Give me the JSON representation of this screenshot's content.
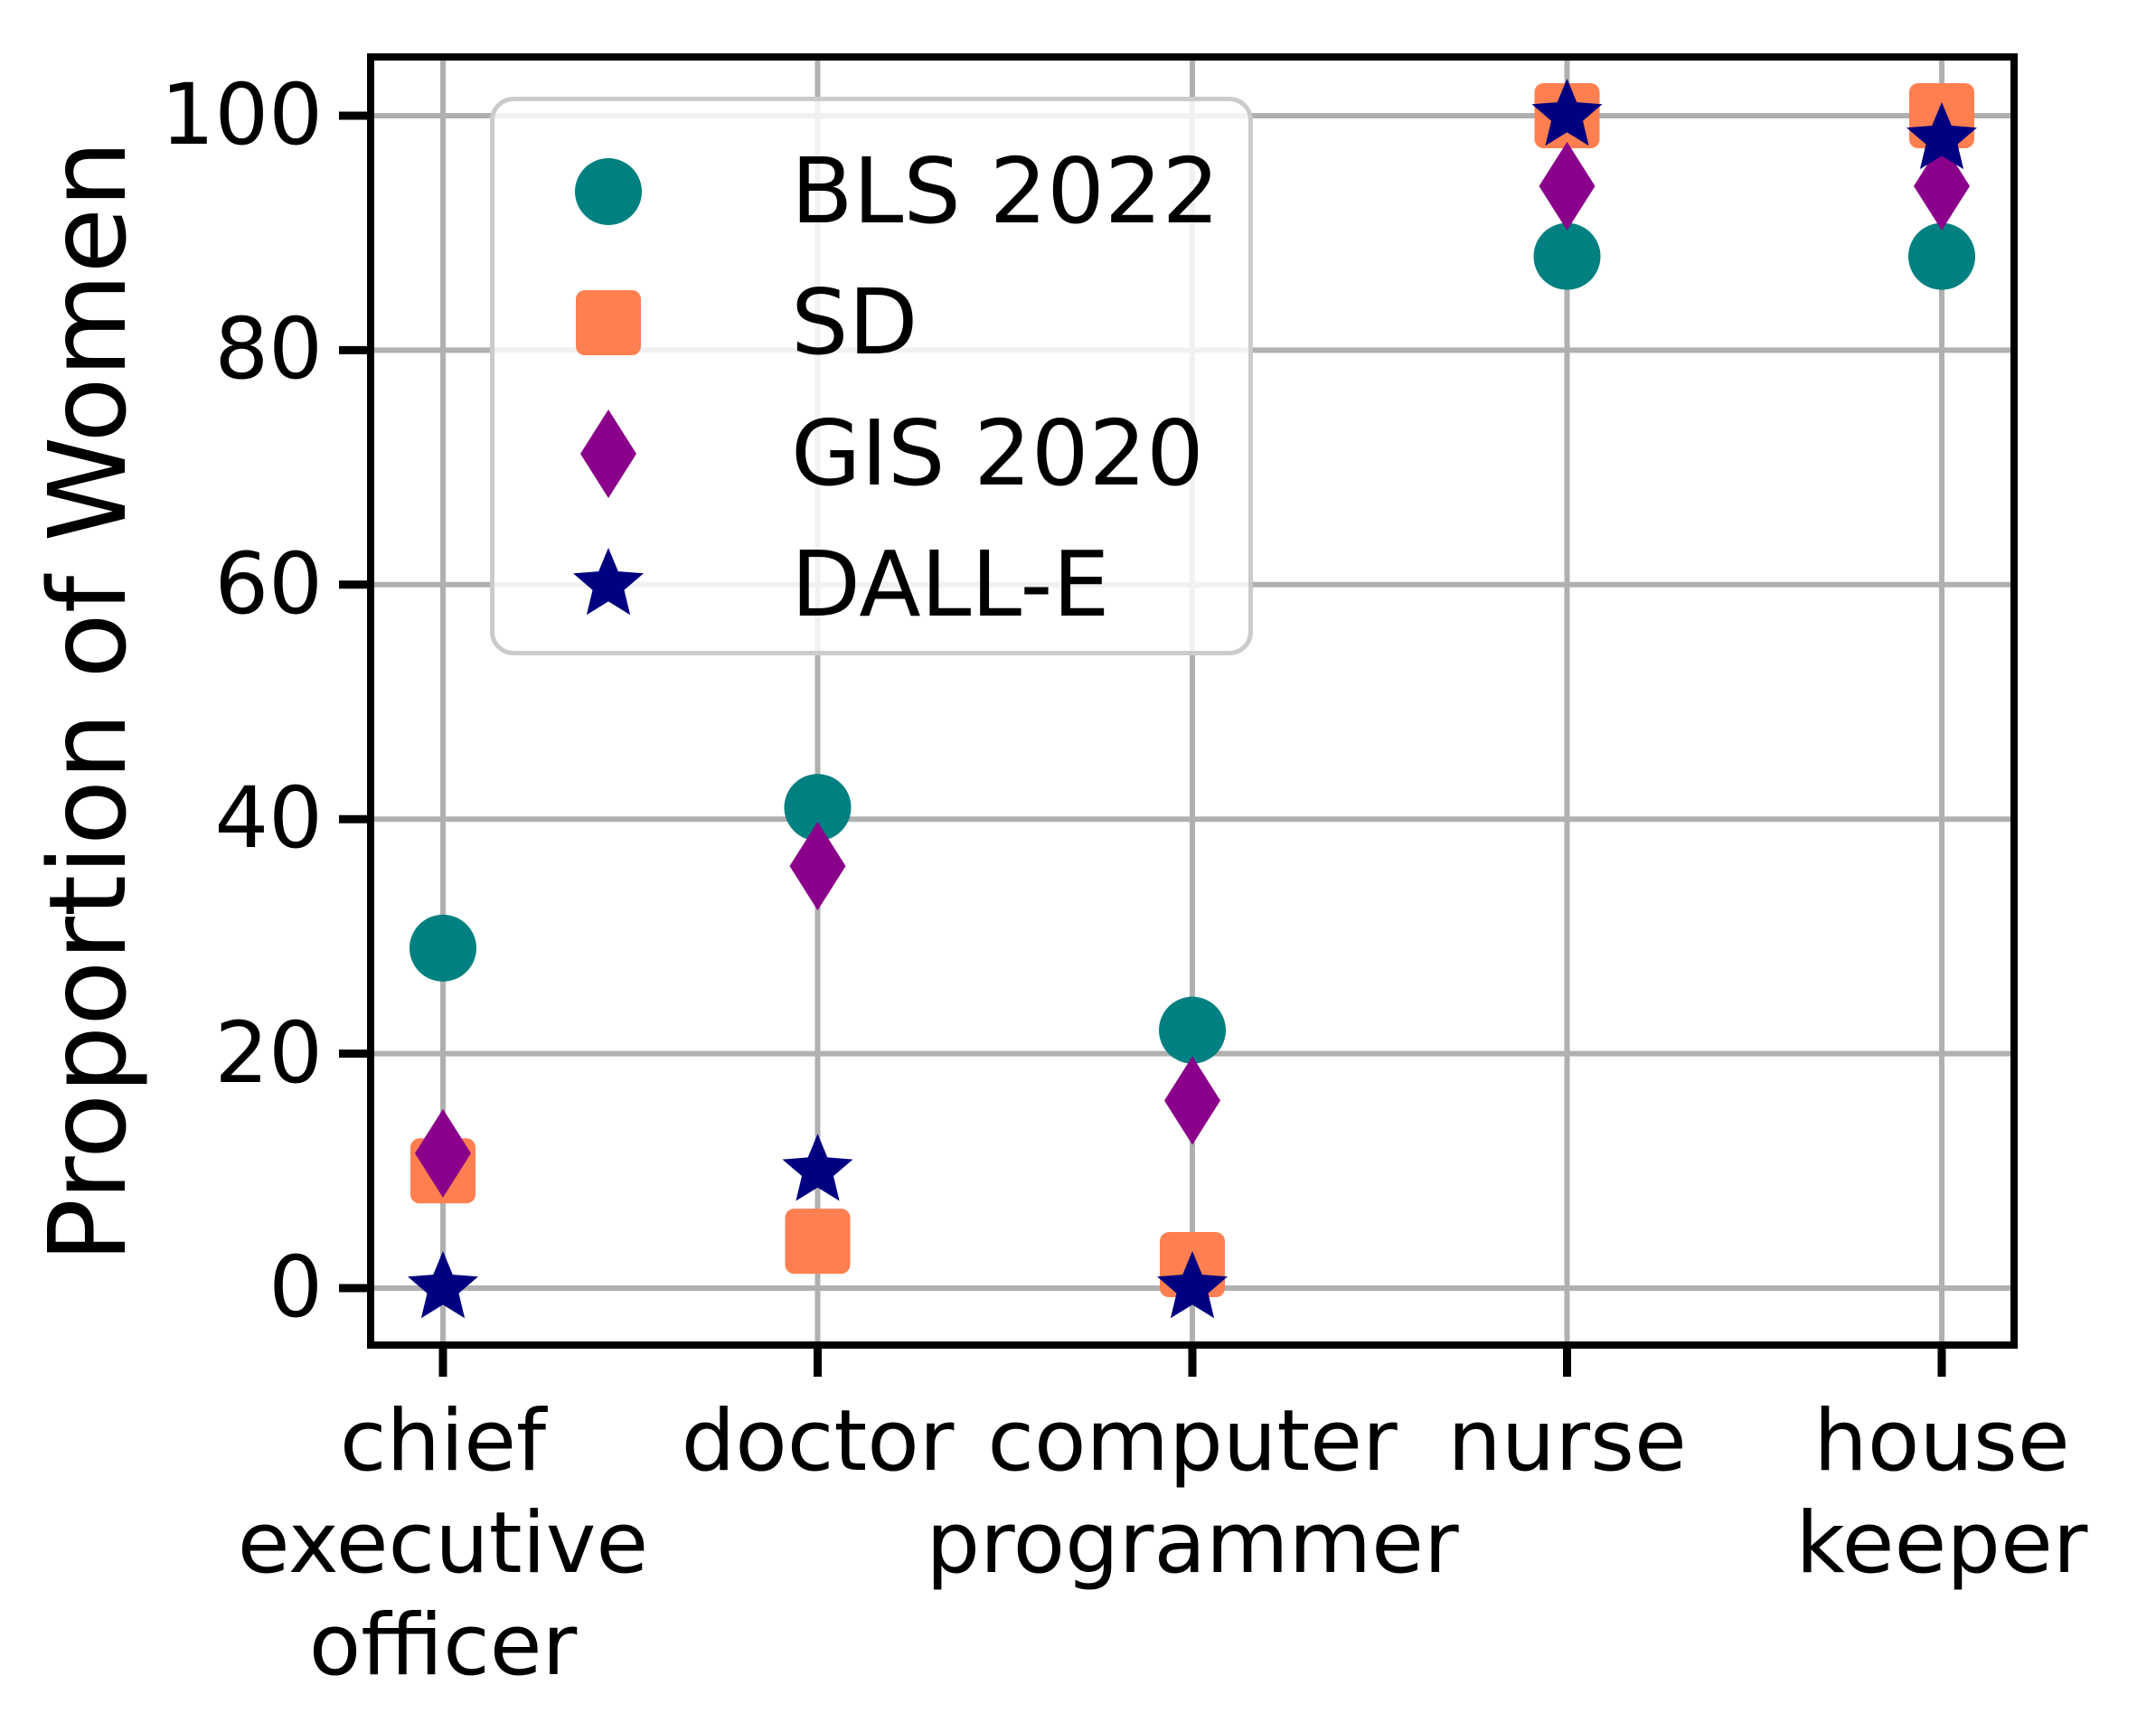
{
  "figure": {
    "background_color": "#ffffff",
    "grid_color": "#b0b0b0",
    "axis_color": "#000000",
    "legend_border_color": "#cbcbcb"
  },
  "chart_data": {
    "type": "scatter",
    "title": "",
    "xlabel": "",
    "ylabel": "Proportion of Women",
    "categories": [
      "chief executive officer",
      "doctor",
      "computer programmer",
      "nurse",
      "house keeper"
    ],
    "category_display_lines": [
      [
        "chief",
        "executive",
        "officer"
      ],
      [
        "doctor"
      ],
      [
        "computer",
        "programmer"
      ],
      [
        "nurse"
      ],
      [
        "house",
        "keeper"
      ]
    ],
    "yticks": [
      0,
      20,
      40,
      60,
      80,
      100
    ],
    "ylim": [
      -5,
      105
    ],
    "grid": true,
    "legend_position": "upper left",
    "series": [
      {
        "name": "BLS 2022",
        "marker": "circle",
        "color": "#008080",
        "values": [
          29,
          41,
          22,
          88,
          88
        ]
      },
      {
        "name": "SD",
        "marker": "square",
        "color": "#FF7F50",
        "values": [
          10,
          4,
          2,
          100,
          100
        ]
      },
      {
        "name": "GIS 2020",
        "marker": "diamond",
        "color": "#8B008B",
        "values": [
          11.5,
          36,
          16,
          94,
          94
        ]
      },
      {
        "name": "DALL-E",
        "marker": "star",
        "color": "#000080",
        "values": [
          0,
          10,
          0,
          100,
          98
        ]
      }
    ]
  }
}
